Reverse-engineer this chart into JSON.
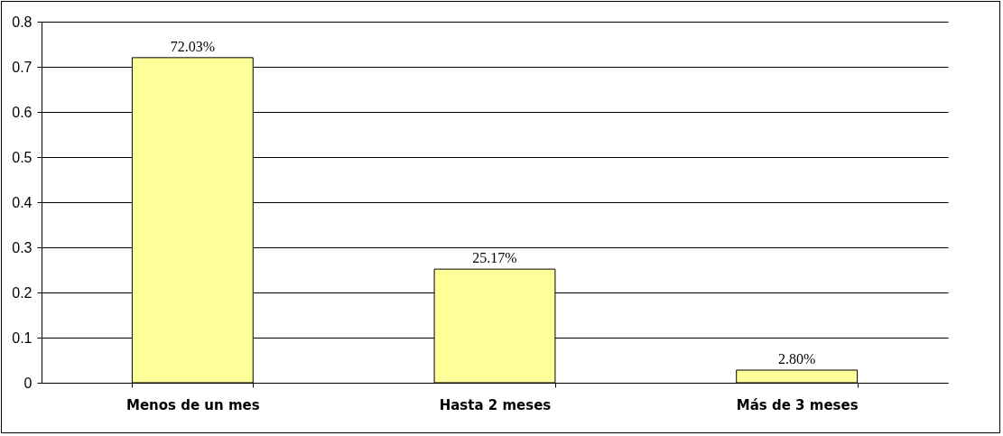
{
  "chart_data": {
    "type": "bar",
    "categories": [
      "Menos de un mes",
      "Hasta 2 meses",
      "Más de 3 meses"
    ],
    "values": [
      0.7203,
      0.2517,
      0.028
    ],
    "value_labels": [
      "72.03%",
      "25.17%",
      "2.80%"
    ],
    "color": "#ffff99",
    "ylim": [
      0,
      0.8
    ],
    "yticks": [
      0,
      0.1,
      0.2,
      0.3,
      0.4,
      0.5,
      0.6,
      0.7,
      0.8
    ],
    "grid": "y"
  }
}
